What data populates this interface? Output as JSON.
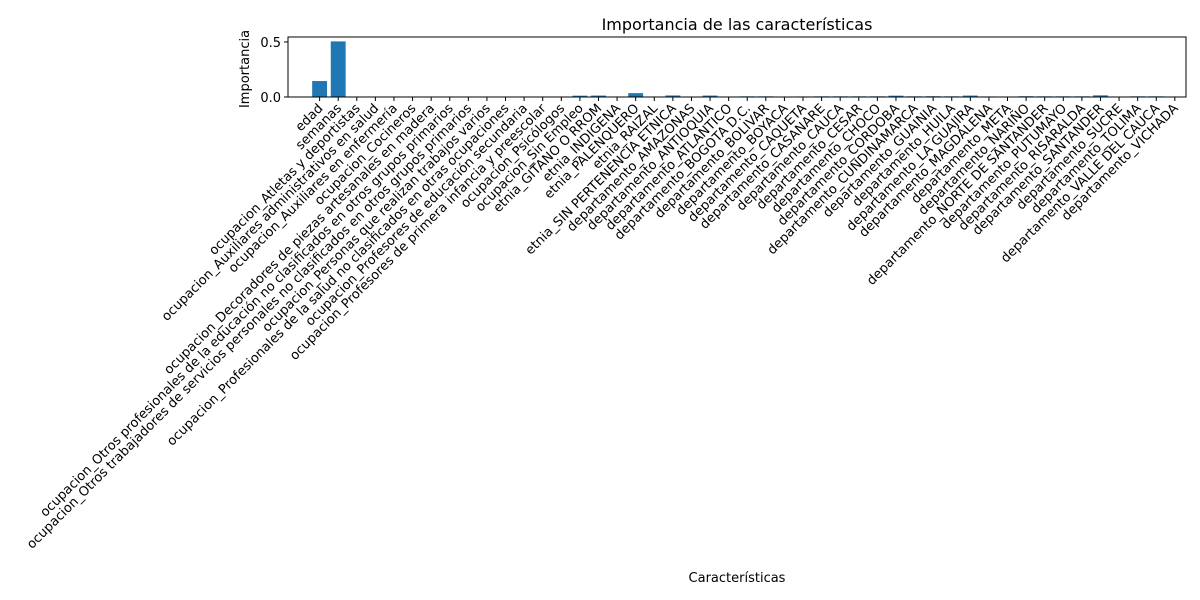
{
  "chart_data": {
    "type": "bar",
    "title": "Importancia de las características",
    "xlabel": "Características",
    "ylabel": "Importancia",
    "ylim": [
      0,
      0.545
    ],
    "yticks": [
      "0.0",
      "0.5"
    ],
    "grid": false,
    "color": "#1f77b4",
    "categories": [
      "edad",
      "semanas",
      "ocupacion_Atletas y deportistas",
      "ocupacion_Auxiliares administrativos en salud",
      "ocupacion_Auxiliares en enfermería",
      "ocupacion_Cocineros",
      "ocupacion_Decoradores de piezas artesanales en madera",
      "ocupacion_Otros profesionales de la educación no clasificados en otros grupos primarios",
      "ocupacion_Otros trabajadores de servicios personales no clasificados en otros grupos primarios",
      "ocupacion_Personas que realizan trabajos varios",
      "ocupacion_Profesionales de la salud no clasificados en otras ocupaciones",
      "ocupacion_Profesores de educación secundaria",
      "ocupacion_Profesores de primera infancia y preescolar",
      "ocupacion_Psicólogos",
      "ocupacion_Sin Empleo",
      "etnia_GITANO O RROM",
      "etnia_INDIGENA",
      "etnia_PALENQUERO",
      "etnia_RAIZAL",
      "etnia_SIN PERTENENCIA ETNICA",
      "departamento_AMAZONAS",
      "departamento_ANTIOQUIA",
      "departamento_ATLANTICO",
      "departamento_BOGOTA D.C.",
      "departamento_BOLIVAR",
      "departamento_BOYACA",
      "departamento_CAQUETA",
      "departamento_CASANARE",
      "departamento_CAUCA",
      "departamento_CESAR",
      "departamento_CHOCO",
      "departamento_CORDOBA",
      "departamento_CUNDINAMARCA",
      "departamento_GUAINIA",
      "departamento_HUILA",
      "departamento_LA GUAJIRA",
      "departamento_MAGDALENA",
      "departamento_META",
      "departamento_NARIÑO",
      "departamento_NORTE DE SANTANDER",
      "departamento_PUTUMAYO",
      "departamento_RISARALDA",
      "departamento_SANTANDER",
      "departamento_SUCRE",
      "departamento_TOLIMA",
      "departamento_VALLE DEL CAUCA",
      "departamento_VICHADA"
    ],
    "values": [
      0.145,
      0.505,
      0.0,
      0.0,
      0.0,
      0.0,
      0.0,
      0.0,
      0.0,
      0.0,
      0.0,
      0.0,
      0.0,
      0.0,
      0.012,
      0.013,
      0.004,
      0.035,
      0.0,
      0.014,
      0.0,
      0.013,
      0.0,
      0.006,
      0.006,
      0.0,
      0.005,
      0.006,
      0.006,
      0.006,
      0.006,
      0.012,
      0.006,
      0.007,
      0.006,
      0.013,
      0.005,
      0.0,
      0.007,
      0.006,
      0.006,
      0.006,
      0.015,
      0.0,
      0.006,
      0.006,
      0.0
    ]
  }
}
